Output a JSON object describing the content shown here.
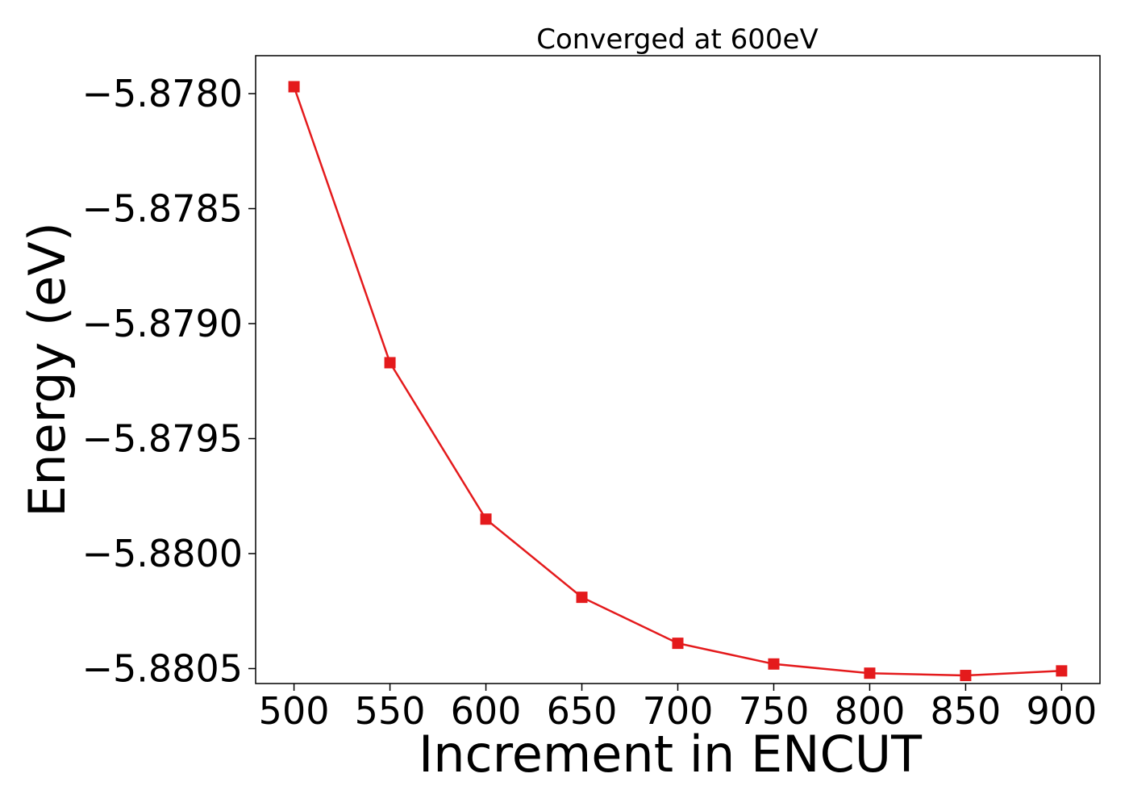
{
  "chart_data": {
    "type": "line",
    "title": "Converged at 600eV",
    "xlabel": "Increment in ENCUT",
    "ylabel": "Energy (eV)",
    "x": [
      500,
      550,
      600,
      650,
      700,
      750,
      800,
      850,
      900
    ],
    "series": [
      {
        "values": [
          -5.87797,
          -5.87917,
          -5.87985,
          -5.88019,
          -5.88039,
          -5.88048,
          -5.88052,
          -5.88053,
          -5.88051
        ],
        "color": "#e41a1c",
        "marker": "square"
      }
    ],
    "xticks": [
      500,
      550,
      600,
      650,
      700,
      750,
      800,
      850,
      900
    ],
    "xtick_labels": [
      "500",
      "550",
      "600",
      "650",
      "700",
      "750",
      "800",
      "850",
      "900"
    ],
    "yticks": [
      -5.878,
      -5.8785,
      -5.879,
      -5.8795,
      -5.88,
      -5.8805
    ],
    "ytick_labels": [
      "−5.8780",
      "−5.8785",
      "−5.8790",
      "−5.8795",
      "−5.8800",
      "−5.8805"
    ],
    "xlim": [
      480,
      920
    ],
    "ylim": [
      -5.880565,
      -5.877835
    ],
    "grid": false,
    "legend": "none"
  }
}
